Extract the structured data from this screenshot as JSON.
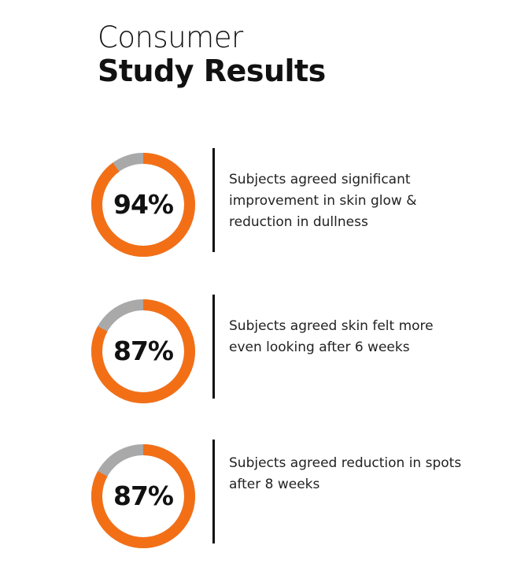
{
  "title": {
    "line1": "Consumer",
    "line2": "Study Results"
  },
  "colors": {
    "accent": "#f36f16",
    "track": "#a9a9a9"
  },
  "chart_data": {
    "type": "pie",
    "variant": "donut",
    "items": [
      {
        "value": 94,
        "label": "94%",
        "description": "Subjects agreed significant improvement in skin glow & reduction in dullness"
      },
      {
        "value": 87,
        "label": "87%",
        "description": "Subjects agreed skin felt more even looking after 6 weeks"
      },
      {
        "value": 87,
        "label": "87%",
        "description": "Subjects agreed reduction in spots after 8 weeks"
      }
    ]
  }
}
